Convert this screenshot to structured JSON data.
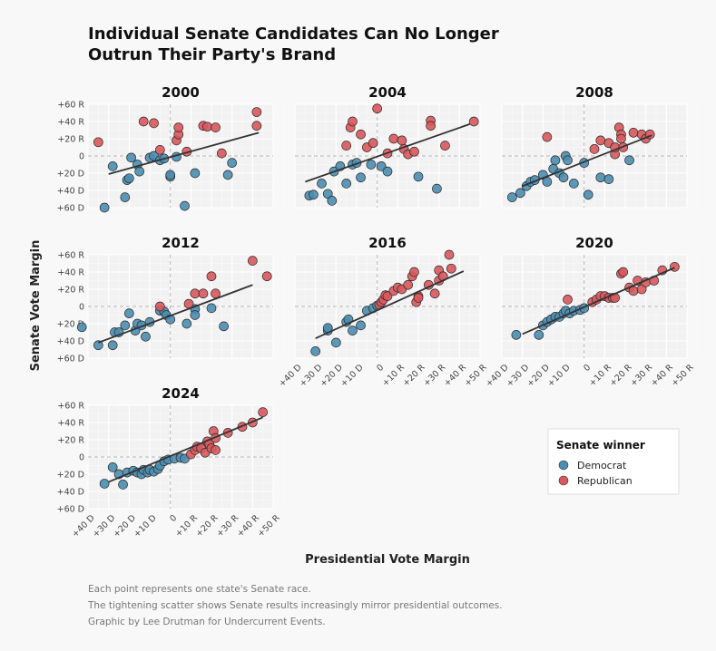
{
  "title_lines": [
    "Individual Senate Candidates Can No Longer",
    "Outrun Their Party's Brand"
  ],
  "xlabel": "Presidential Vote Margin",
  "ylabel": "Senate Vote Margin",
  "caption_lines": [
    "Each point represents one state's Senate race.",
    "The tightening scatter shows Senate results increasingly mirror presidential outcomes.",
    "Graphic by Lee Drutman for Undercurrent Events."
  ],
  "legend": {
    "title": "Senate winner",
    "items": [
      {
        "label": "Democrat",
        "color": "#4a8db0"
      },
      {
        "label": "Republican",
        "color": "#d9585c"
      }
    ]
  },
  "chart_data": {
    "type": "scatter",
    "x_ticks": [
      "+40 D",
      "+30 D",
      "+20 D",
      "+10 D",
      "0",
      "+10 R",
      "+20 R",
      "+30 R",
      "+40 R",
      "+50 R"
    ],
    "y_ticks": [
      "+60 R",
      "+40 R",
      "+20 R",
      "0",
      "+20 D",
      "+40 D",
      "+60 D"
    ],
    "xlim": [
      -40,
      50
    ],
    "ylim": [
      -60,
      60
    ],
    "sign_convention": "positive = R, negative = D",
    "grid": true,
    "legend_position": "bottom-right",
    "panels": [
      {
        "year": "2000",
        "trend": [
          [
            -30,
            -21
          ],
          [
            43,
            27
          ]
        ],
        "points": [
          [
            -32,
            -60,
            "D"
          ],
          [
            -28,
            -12,
            "D"
          ],
          [
            -22,
            -48,
            "D"
          ],
          [
            -21,
            -28,
            "D"
          ],
          [
            -20,
            -26,
            "D"
          ],
          [
            -19,
            -2,
            "D"
          ],
          [
            -16,
            -10,
            "D"
          ],
          [
            -15,
            -18,
            "D"
          ],
          [
            -10,
            -2,
            "D"
          ],
          [
            -8,
            0,
            "D"
          ],
          [
            -5,
            -5,
            "D"
          ],
          [
            -3,
            -3,
            "D"
          ],
          [
            0,
            -24,
            "D"
          ],
          [
            0,
            -22,
            "D"
          ],
          [
            3,
            -1,
            "D"
          ],
          [
            7,
            -58,
            "D"
          ],
          [
            12,
            -20,
            "D"
          ],
          [
            28,
            -22,
            "D"
          ],
          [
            30,
            -8,
            "D"
          ],
          [
            -35,
            16,
            "R"
          ],
          [
            -13,
            40,
            "R"
          ],
          [
            -8,
            38,
            "R"
          ],
          [
            -5,
            7,
            "R"
          ],
          [
            3,
            18,
            "R"
          ],
          [
            4,
            25,
            "R"
          ],
          [
            4,
            33,
            "R"
          ],
          [
            8,
            5,
            "R"
          ],
          [
            16,
            35,
            "R"
          ],
          [
            18,
            34,
            "R"
          ],
          [
            22,
            33,
            "R"
          ],
          [
            25,
            3,
            "R"
          ],
          [
            42,
            51,
            "R"
          ],
          [
            42,
            35,
            "R"
          ]
        ]
      },
      {
        "year": "2004",
        "trend": [
          [
            -35,
            -30
          ],
          [
            45,
            37
          ]
        ],
        "points": [
          [
            -33,
            -46,
            "D"
          ],
          [
            -31,
            -45,
            "D"
          ],
          [
            -27,
            -32,
            "D"
          ],
          [
            -24,
            -44,
            "D"
          ],
          [
            -22,
            -52,
            "D"
          ],
          [
            -21,
            -18,
            "D"
          ],
          [
            -18,
            -12,
            "D"
          ],
          [
            -15,
            -32,
            "D"
          ],
          [
            -12,
            -10,
            "D"
          ],
          [
            -10,
            -8,
            "D"
          ],
          [
            -8,
            -25,
            "D"
          ],
          [
            -3,
            -10,
            "D"
          ],
          [
            2,
            -12,
            "D"
          ],
          [
            5,
            -18,
            "D"
          ],
          [
            20,
            -24,
            "D"
          ],
          [
            29,
            -38,
            "D"
          ],
          [
            -15,
            12,
            "R"
          ],
          [
            -13,
            33,
            "R"
          ],
          [
            -12,
            40,
            "R"
          ],
          [
            -8,
            25,
            "R"
          ],
          [
            -5,
            10,
            "R"
          ],
          [
            -2,
            15,
            "R"
          ],
          [
            0,
            55,
            "R"
          ],
          [
            5,
            3,
            "R"
          ],
          [
            8,
            20,
            "R"
          ],
          [
            12,
            18,
            "R"
          ],
          [
            13,
            8,
            "R"
          ],
          [
            15,
            2,
            "R"
          ],
          [
            18,
            5,
            "R"
          ],
          [
            26,
            41,
            "R"
          ],
          [
            26,
            35,
            "R"
          ],
          [
            33,
            12,
            "R"
          ],
          [
            47,
            40,
            "R"
          ]
        ]
      },
      {
        "year": "2008",
        "trend": [
          [
            -30,
            -35
          ],
          [
            33,
            24
          ]
        ],
        "points": [
          [
            -35,
            -48,
            "D"
          ],
          [
            -31,
            -43,
            "D"
          ],
          [
            -28,
            -35,
            "D"
          ],
          [
            -26,
            -30,
            "D"
          ],
          [
            -24,
            -28,
            "D"
          ],
          [
            -20,
            -22,
            "D"
          ],
          [
            -18,
            -30,
            "D"
          ],
          [
            -15,
            -15,
            "D"
          ],
          [
            -14,
            -5,
            "D"
          ],
          [
            -12,
            -20,
            "D"
          ],
          [
            -10,
            -25,
            "D"
          ],
          [
            -9,
            0,
            "D"
          ],
          [
            -8,
            -5,
            "D"
          ],
          [
            -5,
            -32,
            "D"
          ],
          [
            0,
            -8,
            "D"
          ],
          [
            2,
            -45,
            "D"
          ],
          [
            8,
            -25,
            "D"
          ],
          [
            12,
            -27,
            "D"
          ],
          [
            22,
            -5,
            "D"
          ],
          [
            -18,
            22,
            "R"
          ],
          [
            5,
            8,
            "R"
          ],
          [
            8,
            18,
            "R"
          ],
          [
            12,
            15,
            "R"
          ],
          [
            15,
            2,
            "R"
          ],
          [
            15,
            10,
            "R"
          ],
          [
            17,
            33,
            "R"
          ],
          [
            18,
            25,
            "R"
          ],
          [
            18,
            20,
            "R"
          ],
          [
            19,
            10,
            "R"
          ],
          [
            24,
            27,
            "R"
          ],
          [
            28,
            25,
            "R"
          ],
          [
            30,
            20,
            "R"
          ],
          [
            32,
            25,
            "R"
          ]
        ]
      },
      {
        "year": "2012",
        "trend": [
          [
            -35,
            -42
          ],
          [
            40,
            25
          ]
        ],
        "points": [
          [
            -43,
            -24,
            "D"
          ],
          [
            -35,
            -45,
            "D"
          ],
          [
            -28,
            -45,
            "D"
          ],
          [
            -27,
            -30,
            "D"
          ],
          [
            -25,
            -30,
            "D"
          ],
          [
            -22,
            -22,
            "D"
          ],
          [
            -20,
            -8,
            "D"
          ],
          [
            -17,
            -28,
            "D"
          ],
          [
            -16,
            -20,
            "D"
          ],
          [
            -14,
            -22,
            "D"
          ],
          [
            -12,
            -35,
            "D"
          ],
          [
            -10,
            -18,
            "D"
          ],
          [
            -5,
            -5,
            "D"
          ],
          [
            -3,
            -6,
            "D"
          ],
          [
            -2,
            -10,
            "D"
          ],
          [
            0,
            -15,
            "D"
          ],
          [
            8,
            -20,
            "D"
          ],
          [
            12,
            -3,
            "D"
          ],
          [
            12,
            -10,
            "D"
          ],
          [
            20,
            -2,
            "D"
          ],
          [
            26,
            -23,
            "D"
          ],
          [
            -5,
            0,
            "R"
          ],
          [
            9,
            3,
            "R"
          ],
          [
            12,
            15,
            "R"
          ],
          [
            16,
            15,
            "R"
          ],
          [
            20,
            35,
            "R"
          ],
          [
            22,
            15,
            "R"
          ],
          [
            40,
            53,
            "R"
          ],
          [
            47,
            35,
            "R"
          ]
        ]
      },
      {
        "year": "2016",
        "trend": [
          [
            -30,
            -37
          ],
          [
            42,
            41
          ]
        ],
        "points": [
          [
            -30,
            -52,
            "D"
          ],
          [
            -24,
            -28,
            "D"
          ],
          [
            -24,
            -25,
            "D"
          ],
          [
            -20,
            -42,
            "D"
          ],
          [
            -15,
            -18,
            "D"
          ],
          [
            -14,
            -15,
            "D"
          ],
          [
            -12,
            -28,
            "D"
          ],
          [
            -8,
            -22,
            "D"
          ],
          [
            -5,
            -5,
            "D"
          ],
          [
            -2,
            -2,
            "D"
          ],
          [
            0,
            1,
            "D"
          ],
          [
            1,
            2,
            "R"
          ],
          [
            2,
            5,
            "R"
          ],
          [
            3,
            8,
            "R"
          ],
          [
            4,
            13,
            "R"
          ],
          [
            5,
            12,
            "R"
          ],
          [
            8,
            18,
            "R"
          ],
          [
            10,
            22,
            "R"
          ],
          [
            12,
            20,
            "R"
          ],
          [
            15,
            25,
            "R"
          ],
          [
            17,
            35,
            "R"
          ],
          [
            18,
            40,
            "R"
          ],
          [
            19,
            5,
            "R"
          ],
          [
            20,
            12,
            "R"
          ],
          [
            20,
            10,
            "R"
          ],
          [
            25,
            25,
            "R"
          ],
          [
            28,
            15,
            "R"
          ],
          [
            30,
            30,
            "R"
          ],
          [
            30,
            42,
            "R"
          ],
          [
            32,
            35,
            "R"
          ],
          [
            35,
            60,
            "R"
          ],
          [
            36,
            44,
            "R"
          ]
        ]
      },
      {
        "year": "2020",
        "trend": [
          [
            -30,
            -32
          ],
          [
            44,
            45
          ]
        ],
        "points": [
          [
            -33,
            -33,
            "D"
          ],
          [
            -22,
            -33,
            "D"
          ],
          [
            -20,
            -22,
            "D"
          ],
          [
            -18,
            -18,
            "D"
          ],
          [
            -16,
            -15,
            "D"
          ],
          [
            -14,
            -12,
            "D"
          ],
          [
            -12,
            -12,
            "D"
          ],
          [
            -10,
            -8,
            "D"
          ],
          [
            -9,
            -5,
            "D"
          ],
          [
            -7,
            -8,
            "D"
          ],
          [
            -5,
            -5,
            "D"
          ],
          [
            -2,
            -4,
            "D"
          ],
          [
            0,
            -2,
            "D"
          ],
          [
            -8,
            8,
            "R"
          ],
          [
            4,
            5,
            "R"
          ],
          [
            6,
            8,
            "R"
          ],
          [
            8,
            12,
            "R"
          ],
          [
            10,
            12,
            "R"
          ],
          [
            12,
            10,
            "R"
          ],
          [
            14,
            10,
            "R"
          ],
          [
            15,
            10,
            "R"
          ],
          [
            18,
            38,
            "R"
          ],
          [
            19,
            40,
            "R"
          ],
          [
            22,
            22,
            "R"
          ],
          [
            24,
            18,
            "R"
          ],
          [
            26,
            30,
            "R"
          ],
          [
            28,
            20,
            "R"
          ],
          [
            30,
            28,
            "R"
          ],
          [
            34,
            30,
            "R"
          ],
          [
            38,
            42,
            "R"
          ],
          [
            44,
            46,
            "R"
          ]
        ]
      },
      {
        "year": "2024",
        "trend": [
          [
            -30,
            -29
          ],
          [
            45,
            46
          ]
        ],
        "points": [
          [
            -32,
            -31,
            "D"
          ],
          [
            -28,
            -12,
            "D"
          ],
          [
            -25,
            -20,
            "D"
          ],
          [
            -23,
            -32,
            "D"
          ],
          [
            -21,
            -18,
            "D"
          ],
          [
            -18,
            -16,
            "D"
          ],
          [
            -16,
            -18,
            "D"
          ],
          [
            -14,
            -20,
            "D"
          ],
          [
            -13,
            -15,
            "D"
          ],
          [
            -11,
            -18,
            "D"
          ],
          [
            -10,
            -15,
            "D"
          ],
          [
            -8,
            -17,
            "D"
          ],
          [
            -6,
            -14,
            "D"
          ],
          [
            -5,
            -10,
            "D"
          ],
          [
            -3,
            -5,
            "D"
          ],
          [
            -1,
            -3,
            "D"
          ],
          [
            2,
            -2,
            "D"
          ],
          [
            5,
            -1,
            "D"
          ],
          [
            7,
            -2,
            "D"
          ],
          [
            10,
            3,
            "R"
          ],
          [
            12,
            8,
            "R"
          ],
          [
            13,
            12,
            "R"
          ],
          [
            15,
            10,
            "R"
          ],
          [
            17,
            5,
            "R"
          ],
          [
            18,
            18,
            "R"
          ],
          [
            19,
            15,
            "R"
          ],
          [
            20,
            10,
            "R"
          ],
          [
            21,
            30,
            "R"
          ],
          [
            22,
            22,
            "R"
          ],
          [
            28,
            28,
            "R"
          ],
          [
            35,
            35,
            "R"
          ],
          [
            40,
            40,
            "R"
          ],
          [
            45,
            52,
            "R"
          ],
          [
            22,
            8,
            "R"
          ]
        ]
      }
    ]
  }
}
